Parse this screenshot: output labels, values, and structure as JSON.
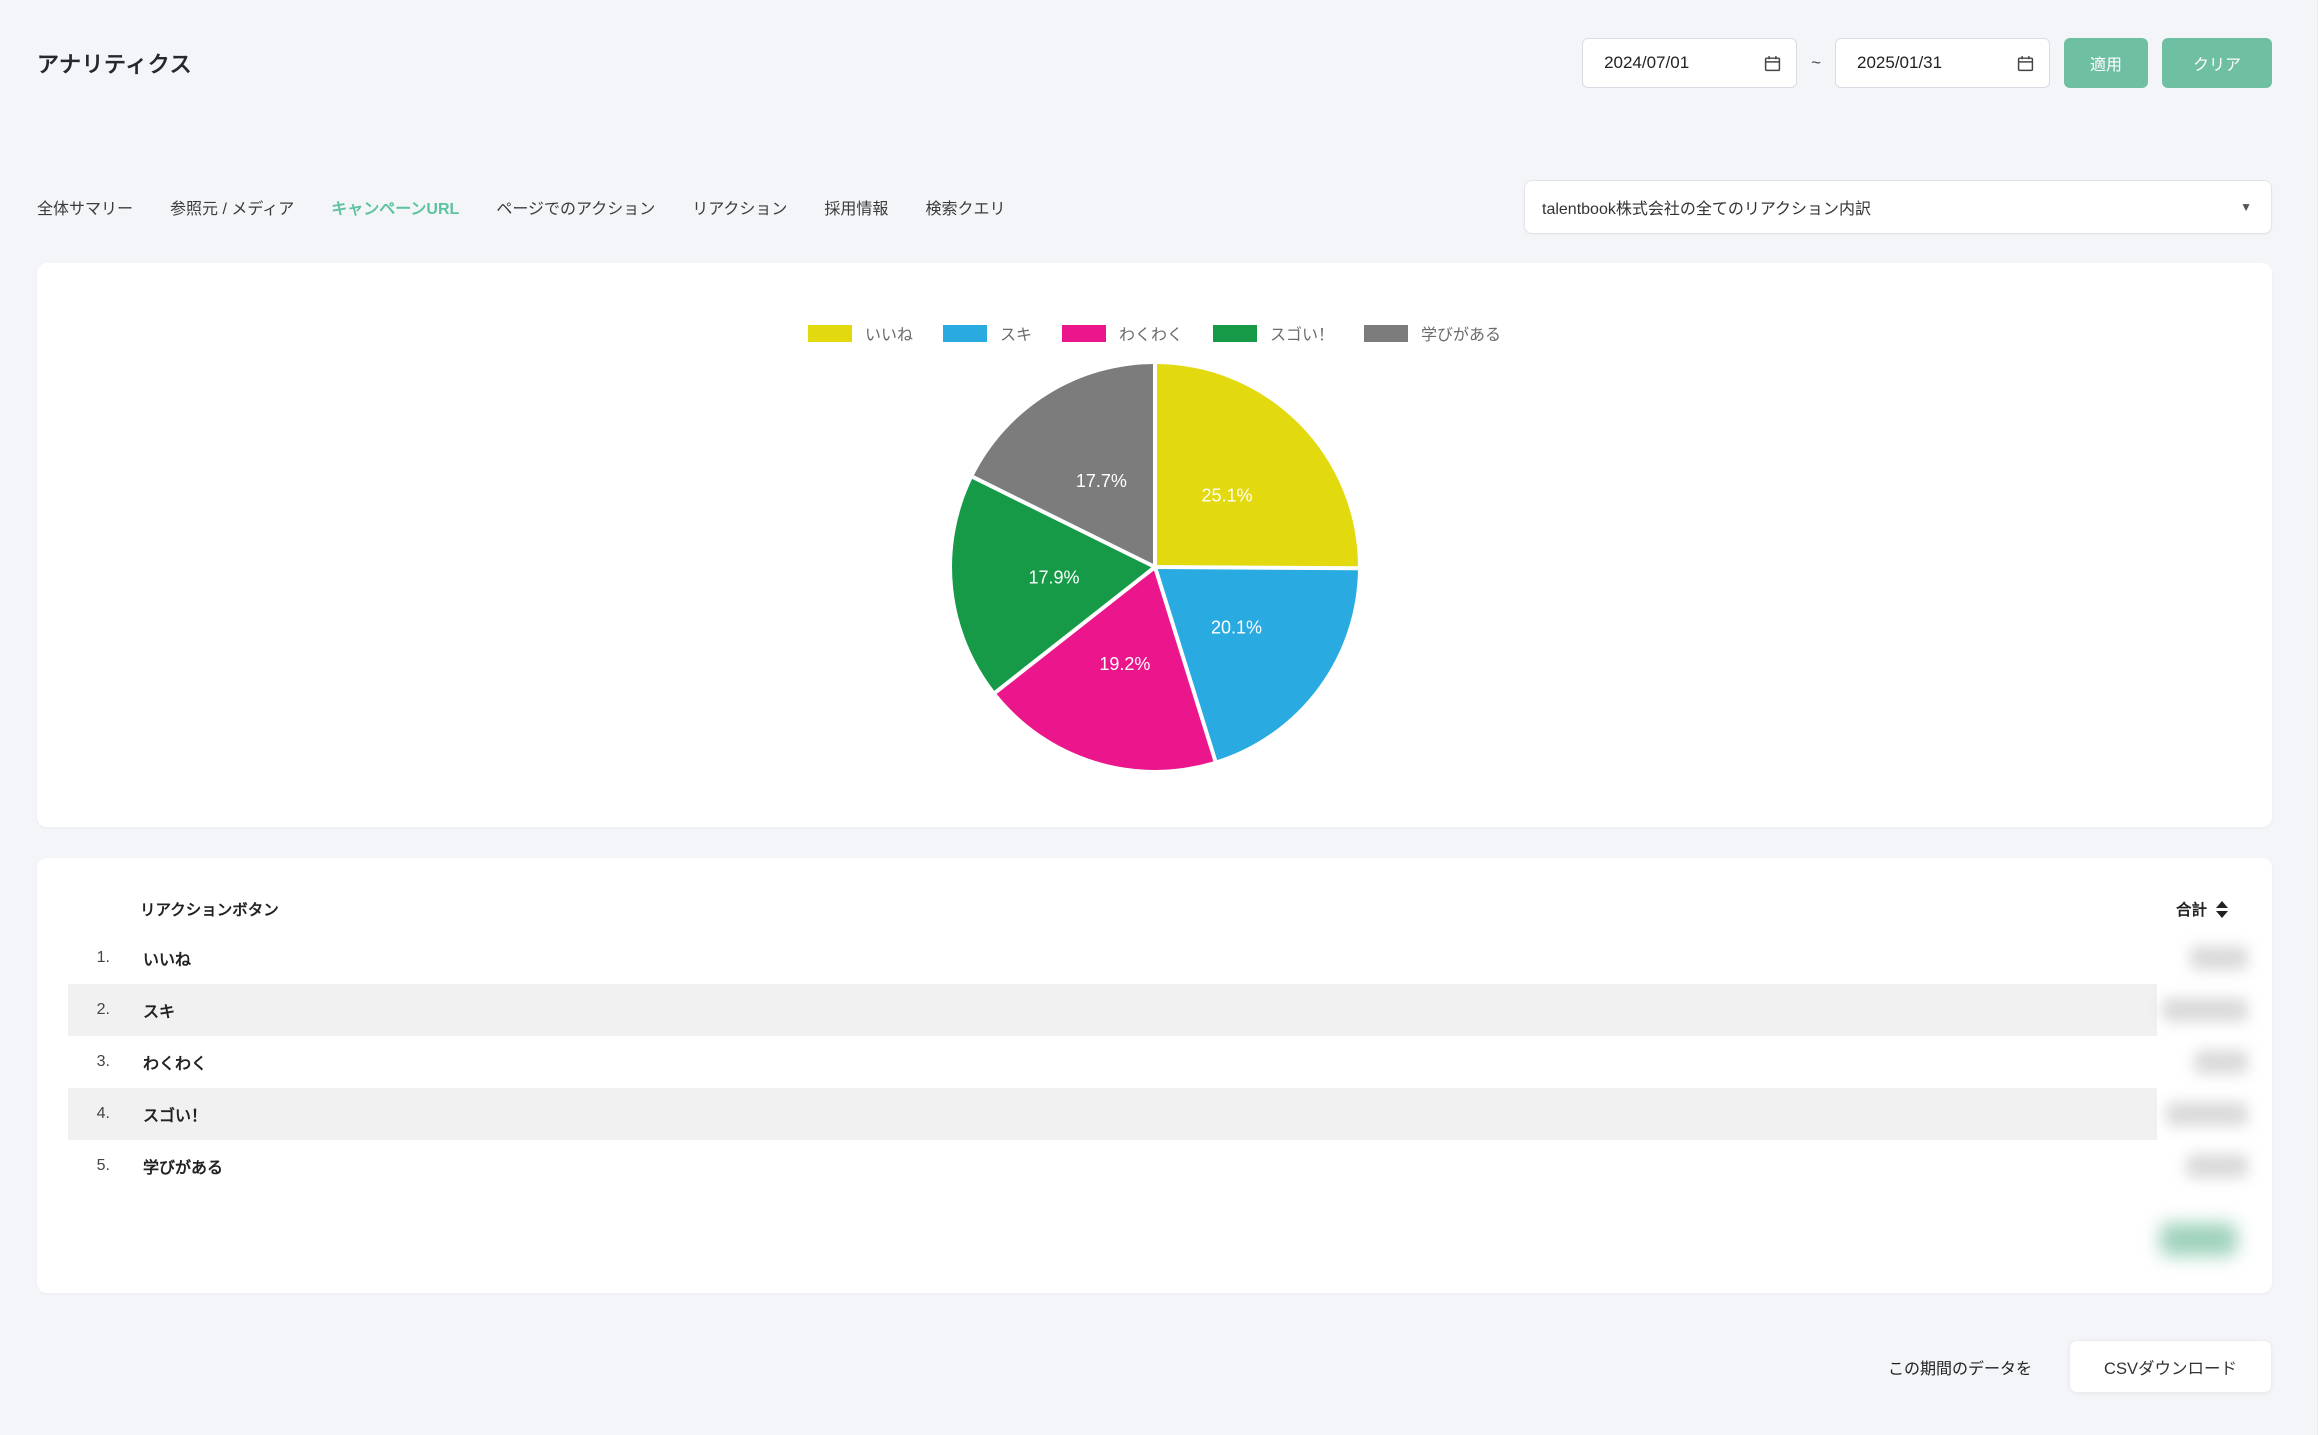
{
  "header": {
    "title": "アナリティクス",
    "date_filter": {
      "start": "2024/07/01",
      "separator": "~",
      "end": "2025/01/31",
      "apply_label": "適用",
      "clear_label": "クリア"
    }
  },
  "tabs": [
    {
      "label": "全体サマリー",
      "active": false
    },
    {
      "label": "参照元 / メディア",
      "active": false
    },
    {
      "label": "キャンペーンURL",
      "active": true
    },
    {
      "label": "ページでのアクション",
      "active": false
    },
    {
      "label": "リアクション",
      "active": false
    },
    {
      "label": "採用情報",
      "active": false
    },
    {
      "label": "検索クエリ",
      "active": false
    }
  ],
  "report_select": {
    "value": "talentbook株式会社の全てのリアクション内訳"
  },
  "colors": {
    "accent_teal": "#5ec2a1",
    "button_teal": "#6fbfa3"
  },
  "chart_data": {
    "type": "pie",
    "categories": [
      "いいね",
      "スキ",
      "わくわく",
      "スゴい！",
      "学びがある"
    ],
    "values": [
      25.1,
      20.1,
      19.2,
      17.9,
      17.7
    ],
    "labels": [
      "25.1%",
      "20.1%",
      "19.2%",
      "17.9%",
      "17.7%"
    ],
    "colors": [
      "#e3d90f",
      "#29abe2",
      "#eb168c",
      "#169a47",
      "#7c7c7c"
    ],
    "unit": "percent",
    "legend_position": "top",
    "start_angle_deg": 0,
    "direction": "clockwise"
  },
  "table": {
    "col_name": "リアクションボタン",
    "col_total": "合計",
    "rows": [
      {
        "rank": "1.",
        "label": "いいね"
      },
      {
        "rank": "2.",
        "label": "スキ"
      },
      {
        "rank": "3.",
        "label": "わくわく"
      },
      {
        "rank": "4.",
        "label": "スゴい！"
      },
      {
        "rank": "5.",
        "label": "学びがある"
      }
    ],
    "values_blurred": true
  },
  "footer": {
    "text": "この期間のデータを",
    "csv_button_label": "CSVダウンロード"
  }
}
